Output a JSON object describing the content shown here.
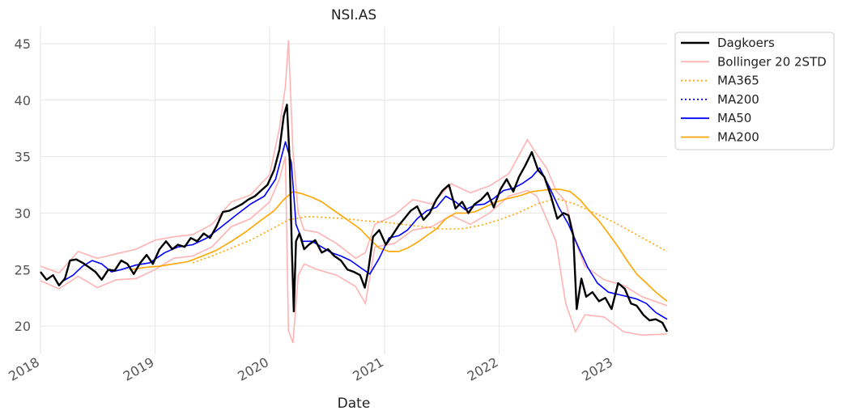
{
  "chart_data": {
    "type": "line",
    "title": "NSI.AS",
    "xlabel": "Date",
    "ylabel": "",
    "xlim": [
      "2018-01-01",
      "2023-06-20"
    ],
    "ylim": [
      17.5,
      46.5
    ],
    "y_ticks": [
      20,
      25,
      30,
      35,
      40,
      45
    ],
    "x_ticks": [
      "2018-01-01",
      "2019-01-01",
      "2020-01-01",
      "2021-01-01",
      "2022-01-01",
      "2023-01-01"
    ],
    "x_tick_labels": [
      "2018",
      "2019",
      "2020",
      "2021",
      "2022",
      "2023"
    ],
    "grid": true,
    "legend_position": "outside-upper-right",
    "legend": [
      "Dagkoers",
      "Bollinger 20 2STD",
      "MA365",
      "MA200",
      "MA50",
      "MA200"
    ],
    "colors": {
      "Dagkoers": "#000000",
      "Bollinger": "#ffb3b3",
      "MA365": "#ffa500",
      "MA200_dotted": "#0000ff",
      "MA50": "#0000ff",
      "MA200": "#ffa500"
    },
    "series": [
      {
        "name": "Dagkoers",
        "style": "solid",
        "x": [
          "2018-01-01",
          "2018-01-20",
          "2018-02-10",
          "2018-03-01",
          "2018-03-20",
          "2018-04-05",
          "2018-04-25",
          "2018-05-15",
          "2018-06-05",
          "2018-06-25",
          "2018-07-15",
          "2018-08-05",
          "2018-08-25",
          "2018-09-15",
          "2018-10-05",
          "2018-10-25",
          "2018-11-15",
          "2018-12-05",
          "2018-12-25",
          "2019-01-15",
          "2019-02-05",
          "2019-02-25",
          "2019-03-15",
          "2019-04-05",
          "2019-04-25",
          "2019-05-15",
          "2019-06-05",
          "2019-06-25",
          "2019-07-15",
          "2019-08-05",
          "2019-08-25",
          "2019-09-15",
          "2019-10-05",
          "2019-10-25",
          "2019-11-15",
          "2019-12-05",
          "2019-12-25",
          "2020-01-15",
          "2020-02-01",
          "2020-02-15",
          "2020-02-25",
          "2020-03-05",
          "2020-03-12",
          "2020-03-18",
          "2020-03-25",
          "2020-04-05",
          "2020-04-20",
          "2020-05-05",
          "2020-05-25",
          "2020-06-15",
          "2020-07-05",
          "2020-07-25",
          "2020-08-15",
          "2020-09-05",
          "2020-09-25",
          "2020-10-15",
          "2020-10-30",
          "2020-11-10",
          "2020-11-25",
          "2020-12-15",
          "2021-01-05",
          "2021-01-25",
          "2021-02-15",
          "2021-03-05",
          "2021-03-25",
          "2021-04-15",
          "2021-05-05",
          "2021-05-25",
          "2021-06-15",
          "2021-07-05",
          "2021-07-25",
          "2021-08-15",
          "2021-09-05",
          "2021-09-25",
          "2021-10-15",
          "2021-11-05",
          "2021-11-25",
          "2021-12-15",
          "2022-01-05",
          "2022-01-25",
          "2022-02-15",
          "2022-03-05",
          "2022-03-25",
          "2022-04-15",
          "2022-05-05",
          "2022-05-25",
          "2022-06-15",
          "2022-07-05",
          "2022-07-25",
          "2022-08-10",
          "2022-08-25",
          "2022-09-05",
          "2022-09-20",
          "2022-10-05",
          "2022-10-25",
          "2022-11-15",
          "2022-12-05",
          "2022-12-25",
          "2023-01-15",
          "2023-02-05",
          "2023-02-25",
          "2023-03-15",
          "2023-04-05",
          "2023-04-25",
          "2023-05-15",
          "2023-06-05",
          "2023-06-20"
        ],
        "values": [
          24.8,
          24.1,
          24.5,
          23.6,
          24.2,
          25.8,
          25.9,
          25.6,
          25.2,
          24.8,
          24.1,
          25.0,
          24.9,
          25.8,
          25.5,
          24.6,
          25.6,
          26.3,
          25.5,
          26.8,
          27.5,
          26.8,
          27.2,
          27.0,
          27.8,
          27.5,
          28.2,
          27.8,
          28.8,
          30.1,
          30.2,
          30.5,
          30.8,
          31.2,
          31.5,
          32.0,
          32.5,
          33.8,
          35.6,
          38.6,
          39.6,
          34.5,
          26.5,
          21.3,
          27.5,
          28.2,
          26.8,
          27.2,
          27.6,
          26.5,
          26.8,
          26.2,
          25.8,
          25.0,
          24.8,
          24.5,
          23.4,
          24.9,
          27.9,
          28.5,
          27.2,
          28.0,
          28.9,
          29.5,
          30.2,
          30.6,
          29.4,
          30.0,
          31.2,
          32.0,
          32.5,
          30.4,
          31.0,
          30.0,
          30.8,
          31.2,
          31.8,
          30.5,
          32.1,
          33.0,
          31.9,
          33.2,
          34.2,
          35.4,
          33.8,
          33.2,
          31.5,
          29.5,
          30.0,
          29.8,
          28.0,
          21.5,
          24.2,
          22.6,
          23.0,
          22.2,
          22.5,
          21.5,
          23.8,
          23.3,
          22.0,
          21.8,
          21.0,
          20.5,
          20.6,
          20.3,
          19.5
        ]
      },
      {
        "name": "Bollinger 20 2STD",
        "style": "band",
        "x": [
          "2018-01-01",
          "2018-03-01",
          "2018-05-01",
          "2018-07-01",
          "2018-09-01",
          "2018-11-01",
          "2019-01-01",
          "2019-03-01",
          "2019-05-01",
          "2019-07-01",
          "2019-09-01",
          "2019-11-01",
          "2020-01-01",
          "2020-02-01",
          "2020-02-20",
          "2020-03-01",
          "2020-03-15",
          "2020-04-01",
          "2020-04-20",
          "2020-06-01",
          "2020-08-01",
          "2020-10-01",
          "2020-11-01",
          "2020-12-01",
          "2021-02-01",
          "2021-04-01",
          "2021-06-01",
          "2021-08-01",
          "2021-10-01",
          "2021-12-01",
          "2022-02-01",
          "2022-04-01",
          "2022-05-01",
          "2022-06-01",
          "2022-07-01",
          "2022-08-01",
          "2022-09-01",
          "2022-10-01",
          "2022-12-01",
          "2023-02-01",
          "2023-04-01",
          "2023-06-20"
        ],
        "upper": [
          25.3,
          24.7,
          26.6,
          26.0,
          26.4,
          26.8,
          27.6,
          27.9,
          28.1,
          29.0,
          31.0,
          31.6,
          33.4,
          37.5,
          41.2,
          45.3,
          35.5,
          30.0,
          28.5,
          28.3,
          27.3,
          26.0,
          26.5,
          29.0,
          29.8,
          31.2,
          30.8,
          32.6,
          31.8,
          32.4,
          33.5,
          36.5,
          35.2,
          34.0,
          32.0,
          31.0,
          27.5,
          25.3,
          24.1,
          23.6,
          22.6,
          21.8
        ],
        "lower": [
          24.0,
          23.3,
          24.4,
          23.4,
          24.1,
          24.2,
          25.0,
          26.0,
          26.2,
          27.0,
          28.8,
          29.5,
          31.0,
          33.0,
          35.0,
          19.6,
          18.5,
          24.5,
          25.5,
          25.0,
          24.5,
          23.5,
          22.0,
          27.0,
          27.3,
          28.5,
          28.8,
          29.8,
          29.0,
          30.0,
          31.5,
          32.0,
          31.5,
          29.5,
          27.5,
          22.0,
          19.5,
          21.0,
          20.8,
          19.5,
          19.2,
          19.3
        ]
      },
      {
        "name": "MA365",
        "style": "dotted",
        "x": [
          "2019-05-01",
          "2019-07-01",
          "2019-09-01",
          "2019-11-01",
          "2020-01-01",
          "2020-03-01",
          "2020-05-01",
          "2020-07-01",
          "2020-09-01",
          "2020-11-01",
          "2021-01-01",
          "2021-03-01",
          "2021-05-01",
          "2021-07-01",
          "2021-09-01",
          "2021-11-01",
          "2022-01-01",
          "2022-03-01",
          "2022-05-01",
          "2022-07-01",
          "2022-09-01",
          "2022-11-01",
          "2023-01-01",
          "2023-03-01",
          "2023-06-20"
        ],
        "values": [
          25.6,
          26.2,
          26.9,
          27.6,
          28.5,
          29.4,
          29.7,
          29.6,
          29.5,
          29.3,
          29.2,
          29.0,
          28.8,
          28.6,
          28.6,
          28.9,
          29.4,
          30.0,
          30.8,
          31.3,
          30.8,
          30.0,
          29.2,
          28.3,
          26.6
        ]
      },
      {
        "name": "MA50",
        "style": "solid",
        "x": [
          "2018-03-15",
          "2018-04-15",
          "2018-05-15",
          "2018-06-15",
          "2018-07-15",
          "2018-08-15",
          "2018-09-15",
          "2018-11-01",
          "2018-12-15",
          "2019-02-01",
          "2019-03-15",
          "2019-05-01",
          "2019-06-15",
          "2019-08-01",
          "2019-09-15",
          "2019-11-01",
          "2019-12-15",
          "2020-01-20",
          "2020-02-20",
          "2020-03-10",
          "2020-03-25",
          "2020-04-15",
          "2020-05-15",
          "2020-06-15",
          "2020-07-15",
          "2020-08-15",
          "2020-09-15",
          "2020-10-15",
          "2020-11-15",
          "2020-12-15",
          "2021-01-15",
          "2021-02-15",
          "2021-03-15",
          "2021-04-15",
          "2021-05-15",
          "2021-06-15",
          "2021-07-15",
          "2021-08-15",
          "2021-09-15",
          "2021-10-15",
          "2021-11-15",
          "2021-12-15",
          "2022-01-15",
          "2022-02-15",
          "2022-03-15",
          "2022-04-15",
          "2022-05-10",
          "2022-06-10",
          "2022-07-10",
          "2022-08-10",
          "2022-09-10",
          "2022-10-10",
          "2022-11-10",
          "2022-12-15",
          "2023-01-15",
          "2023-02-15",
          "2023-03-15",
          "2023-04-15",
          "2023-05-15",
          "2023-06-20"
        ],
        "values": [
          24.0,
          24.5,
          25.3,
          25.8,
          25.5,
          24.8,
          25.0,
          25.4,
          25.6,
          26.5,
          27.0,
          27.2,
          27.8,
          28.8,
          29.8,
          30.8,
          31.5,
          33.0,
          36.3,
          34.5,
          29.0,
          27.5,
          27.5,
          27.0,
          26.5,
          26.2,
          25.8,
          25.2,
          24.6,
          26.0,
          27.8,
          28.0,
          28.5,
          29.5,
          30.2,
          30.5,
          31.5,
          31.0,
          30.3,
          30.7,
          30.8,
          31.3,
          32.0,
          32.2,
          32.6,
          33.2,
          34.0,
          32.3,
          30.5,
          29.0,
          27.0,
          25.2,
          23.8,
          23.0,
          22.8,
          22.6,
          22.4,
          22.0,
          21.2,
          20.6
        ]
      },
      {
        "name": "MA200",
        "style": "solid",
        "x": [
          "2018-10-15",
          "2018-12-01",
          "2019-01-15",
          "2019-03-01",
          "2019-04-15",
          "2019-06-01",
          "2019-07-15",
          "2019-09-01",
          "2019-10-15",
          "2019-12-01",
          "2020-01-15",
          "2020-02-15",
          "2020-03-15",
          "2020-04-15",
          "2020-05-15",
          "2020-06-15",
          "2020-07-15",
          "2020-08-15",
          "2020-09-15",
          "2020-10-15",
          "2020-11-15",
          "2020-12-15",
          "2021-01-15",
          "2021-02-15",
          "2021-03-15",
          "2021-04-15",
          "2021-05-15",
          "2021-06-15",
          "2021-07-15",
          "2021-08-15",
          "2021-09-15",
          "2021-10-15",
          "2021-11-15",
          "2021-12-15",
          "2022-01-15",
          "2022-02-15",
          "2022-03-15",
          "2022-04-15",
          "2022-05-15",
          "2022-06-15",
          "2022-07-15",
          "2022-08-15",
          "2022-09-15",
          "2022-10-15",
          "2022-11-15",
          "2022-12-15",
          "2023-01-15",
          "2023-02-15",
          "2023-03-15",
          "2023-04-15",
          "2023-05-15",
          "2023-06-20"
        ],
        "values": [
          25.0,
          25.2,
          25.3,
          25.5,
          25.7,
          26.2,
          26.7,
          27.5,
          28.3,
          29.3,
          30.2,
          31.2,
          31.9,
          31.7,
          31.4,
          31.0,
          30.4,
          29.8,
          29.2,
          28.6,
          27.7,
          26.9,
          26.6,
          26.6,
          26.9,
          27.4,
          28.0,
          28.6,
          29.5,
          30.0,
          30.0,
          30.1,
          30.5,
          30.9,
          31.2,
          31.4,
          31.6,
          31.9,
          32.0,
          32.1,
          32.1,
          31.9,
          31.2,
          30.2,
          29.3,
          28.2,
          27.0,
          25.7,
          24.6,
          23.8,
          23.0,
          22.2
        ]
      }
    ]
  }
}
